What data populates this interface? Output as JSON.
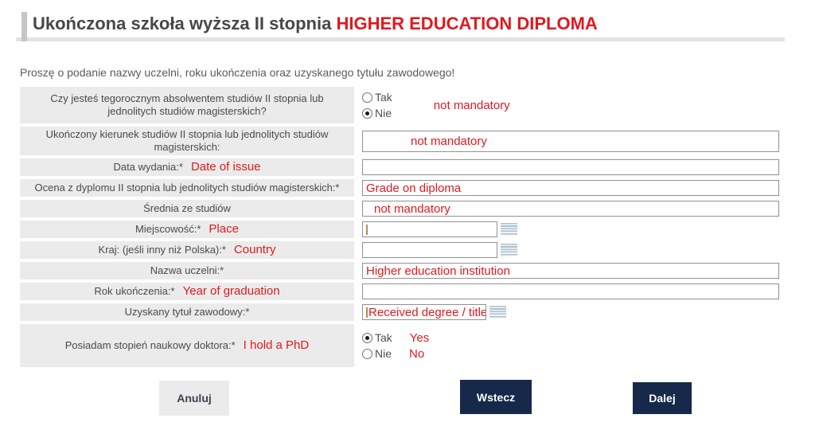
{
  "header": {
    "title_pl": "Ukończona szkoła wyższa II stopnia",
    "title_en": "HIGHER EDUCATION DIPLOMA"
  },
  "intro": "Proszę o podanie nazwy uczelni, roku ukończenia oraz uzyskanego tytułu zawodowego!",
  "colors": {
    "annotation_red": "#e1191f",
    "button_navy": "#16294a",
    "label_cell_gray": "#ebebeb"
  },
  "rows": {
    "grad_this_year": {
      "label": "Czy jesteś tegorocznym absolwentem studiów II stopnia lub jednolitych studiów magisterskich?",
      "option_yes": "Tak",
      "option_no": "Nie",
      "selected": "Nie",
      "note": "not mandatory"
    },
    "field_of_study": {
      "label": "Ukończony kierunek studiów II stopnia lub jednolitych studiów magisterskich:",
      "value": "not mandatory"
    },
    "date_of_issue": {
      "label": "Data wydania:*",
      "note": "Date of issue",
      "value": ""
    },
    "grade": {
      "label": "Ocena z dyplomu II stopnia lub jednolitych studiów magisterskich:*",
      "value": "Grade on diploma"
    },
    "average": {
      "label": "Średnia ze studiów",
      "value": "not mandatory"
    },
    "place": {
      "label": "Miejscowość:*",
      "note": "Place",
      "value": ""
    },
    "country": {
      "label": "Kraj: (jeśli inny niż Polska):*",
      "note": "Country",
      "value": ""
    },
    "institution": {
      "label": "Nazwa uczelni:*",
      "value": "Higher education institution"
    },
    "year_of_graduation": {
      "label": "Rok ukończenia:*",
      "note": "Year of graduation",
      "value": ""
    },
    "degree_title": {
      "label": "Uzyskany tytuł zawodowy:*",
      "value": "Received degree / title"
    },
    "phd": {
      "label": "Posiadam stopień naukowy doktora:*",
      "note": "I hold a PhD",
      "option_yes": "Tak",
      "option_no": "Nie",
      "selected": "Tak",
      "note_yes": "Yes",
      "note_no": "No"
    }
  },
  "buttons": {
    "cancel": "Anuluj",
    "back": "Wstecz",
    "next": "Dalej"
  }
}
